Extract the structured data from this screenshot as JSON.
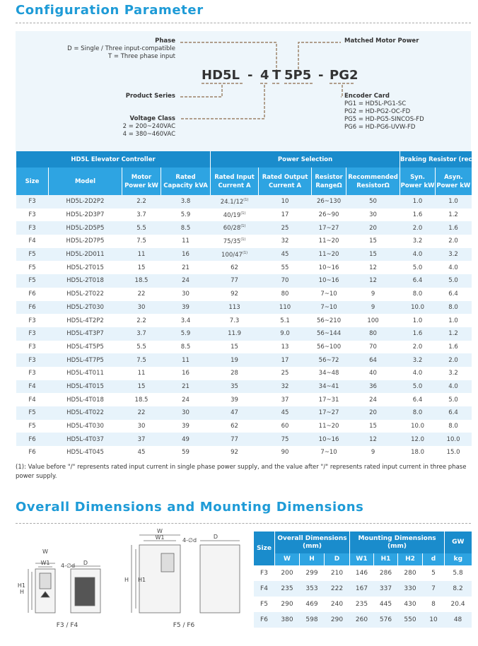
{
  "section1": {
    "title": "Configuration Parameter"
  },
  "code_diagram": {
    "model_code": [
      "HD5L",
      "-",
      "4",
      "T",
      "5P5",
      "-",
      "PG2"
    ],
    "phase": {
      "label": "Phase",
      "options": [
        "D = Single / Three input-compatible",
        "T = Three phase input"
      ]
    },
    "matched_motor_power": {
      "label": "Matched Motor Power"
    },
    "product_series": {
      "label": "Product Series"
    },
    "voltage_class": {
      "label": "Voltage Class",
      "options": [
        "2 = 200~240VAC",
        "4 = 380~460VAC"
      ]
    },
    "encoder_card": {
      "label": "Encoder Card",
      "options": [
        "PG1 = HD5L-PG1-SC",
        "PG2 = HD-PG2-OC-FD",
        "PG5 = HD-PG5-SINCOS-FD",
        "PG6 = HD-PG6-UVW-FD"
      ]
    }
  },
  "spec_table": {
    "groups": [
      "HD5L Elevator Controller",
      "Power Selection",
      "Braking Resistor (recommended)"
    ],
    "columns": [
      [
        "Size"
      ],
      [
        "Model"
      ],
      [
        "Motor",
        "Power kW"
      ],
      [
        "Rated",
        "Capacity kVA"
      ],
      [
        "Rated Input",
        "Current  A"
      ],
      [
        "Rated Output",
        "Current A"
      ],
      [
        "Resistor",
        "RangeΩ"
      ],
      [
        "Recommended",
        "ResistorΩ"
      ],
      [
        "Syn.",
        "Power kW"
      ],
      [
        "Asyn.",
        "Power kW"
      ]
    ],
    "rows": [
      [
        "F3",
        "HD5L-2D2P2",
        "2.2",
        "3.8",
        {
          "text": "24.1/12",
          "sup": "(1)"
        },
        "10",
        "26~130",
        "50",
        "1.0",
        "1.0"
      ],
      [
        "F3",
        "HD5L-2D3P7",
        "3.7",
        "5.9",
        {
          "text": "40/19",
          "sup": "(1)"
        },
        "17",
        "26~90",
        "30",
        "1.6",
        "1.2"
      ],
      [
        "F3",
        "HD5L-2D5P5",
        "5.5",
        "8.5",
        {
          "text": "60/28",
          "sup": "(1)"
        },
        "25",
        "17~27",
        "20",
        "2.0",
        "1.6"
      ],
      [
        "F4",
        "HD5L-2D7P5",
        "7.5",
        "11",
        {
          "text": "75/35",
          "sup": "(1)"
        },
        "32",
        "11~20",
        "15",
        "3.2",
        "2.0"
      ],
      [
        "F5",
        "HD5L-2D011",
        "11",
        "16",
        {
          "text": "100/47",
          "sup": "(1)"
        },
        "45",
        "11~20",
        "15",
        "4.0",
        "3.2"
      ],
      [
        "F5",
        "HD5L-2T015",
        "15",
        "21",
        "62",
        "55",
        "10~16",
        "12",
        "5.0",
        "4.0"
      ],
      [
        "F5",
        "HD5L-2T018",
        "18.5",
        "24",
        "77",
        "70",
        "10~16",
        "12",
        "6.4",
        "5.0"
      ],
      [
        "F6",
        "HD5L-2T022",
        "22",
        "30",
        "92",
        "80",
        "7~10",
        "9",
        "8.0",
        "6.4"
      ],
      [
        "F6",
        "HD5L-2T030",
        "30",
        "39",
        "113",
        "110",
        "7~10",
        "9",
        "10.0",
        "8.0"
      ],
      [
        "F3",
        "HD5L-4T2P2",
        "2.2",
        "3.4",
        "7.3",
        "5.1",
        "56~210",
        "100",
        "1.0",
        "1.0"
      ],
      [
        "F3",
        "HD5L-4T3P7",
        "3.7",
        "5.9",
        "11.9",
        "9.0",
        "56~144",
        "80",
        "1.6",
        "1.2"
      ],
      [
        "F3",
        "HD5L-4T5P5",
        "5.5",
        "8.5",
        "15",
        "13",
        "56~100",
        "70",
        "2.0",
        "1.6"
      ],
      [
        "F3",
        "HD5L-4T7P5",
        "7.5",
        "11",
        "19",
        "17",
        "56~72",
        "64",
        "3.2",
        "2.0"
      ],
      [
        "F3",
        "HD5L-4T011",
        "11",
        "16",
        "28",
        "25",
        "34~48",
        "40",
        "4.0",
        "3.2"
      ],
      [
        "F4",
        "HD5L-4T015",
        "15",
        "21",
        "35",
        "32",
        "34~41",
        "36",
        "5.0",
        "4.0"
      ],
      [
        "F4",
        "HD5L-4T018",
        "18.5",
        "24",
        "39",
        "37",
        "17~31",
        "24",
        "6.4",
        "5.0"
      ],
      [
        "F5",
        "HD5L-4T022",
        "22",
        "30",
        "47",
        "45",
        "17~27",
        "20",
        "8.0",
        "6.4"
      ],
      [
        "F5",
        "HD5L-4T030",
        "30",
        "39",
        "62",
        "60",
        "11~20",
        "15",
        "10.0",
        "8.0"
      ],
      [
        "F6",
        "HD5L-4T037",
        "37",
        "49",
        "77",
        "75",
        "10~16",
        "12",
        "12.0",
        "10.0"
      ],
      [
        "F6",
        "HD5L-4T045",
        "45",
        "59",
        "92",
        "90",
        "7~10",
        "9",
        "18.0",
        "15.0"
      ]
    ]
  },
  "footnote": "(1): Value before \"/\" represents rated input current in single phase power supply, and the value after \"/\" represents rated input current in three phase power supply.",
  "section2": {
    "title": "Overall Dimensions and Mounting Dimensions"
  },
  "drawings": [
    {
      "caption": "F3 / F4",
      "labels": [
        "W",
        "W1",
        "4-∅d",
        "D",
        "H",
        "H1"
      ]
    },
    {
      "caption": "F5 / F6",
      "labels": [
        "W",
        "W1",
        "4-∅d",
        "D",
        "H",
        "H1"
      ]
    }
  ],
  "dimension_table": {
    "size_header": "Size",
    "groups": [
      [
        "Overall Dimensions",
        "(mm)"
      ],
      [
        "Mounting Dimensions",
        "(mm)"
      ]
    ],
    "gw_header": "GW",
    "columns": [
      "W",
      "H",
      "D",
      "W1",
      "H1",
      "H2",
      "d"
    ],
    "gw_unit": "kg",
    "rows": [
      [
        "F3",
        "200",
        "299",
        "210",
        "146",
        "286",
        "280",
        "5",
        "5.8"
      ],
      [
        "F4",
        "235",
        "353",
        "222",
        "167",
        "337",
        "330",
        "7",
        "8.2"
      ],
      [
        "F5",
        "290",
        "469",
        "240",
        "235",
        "445",
        "430",
        "8",
        "20.4"
      ],
      [
        "F6",
        "380",
        "598",
        "290",
        "260",
        "576",
        "550",
        "10",
        "48"
      ]
    ]
  }
}
